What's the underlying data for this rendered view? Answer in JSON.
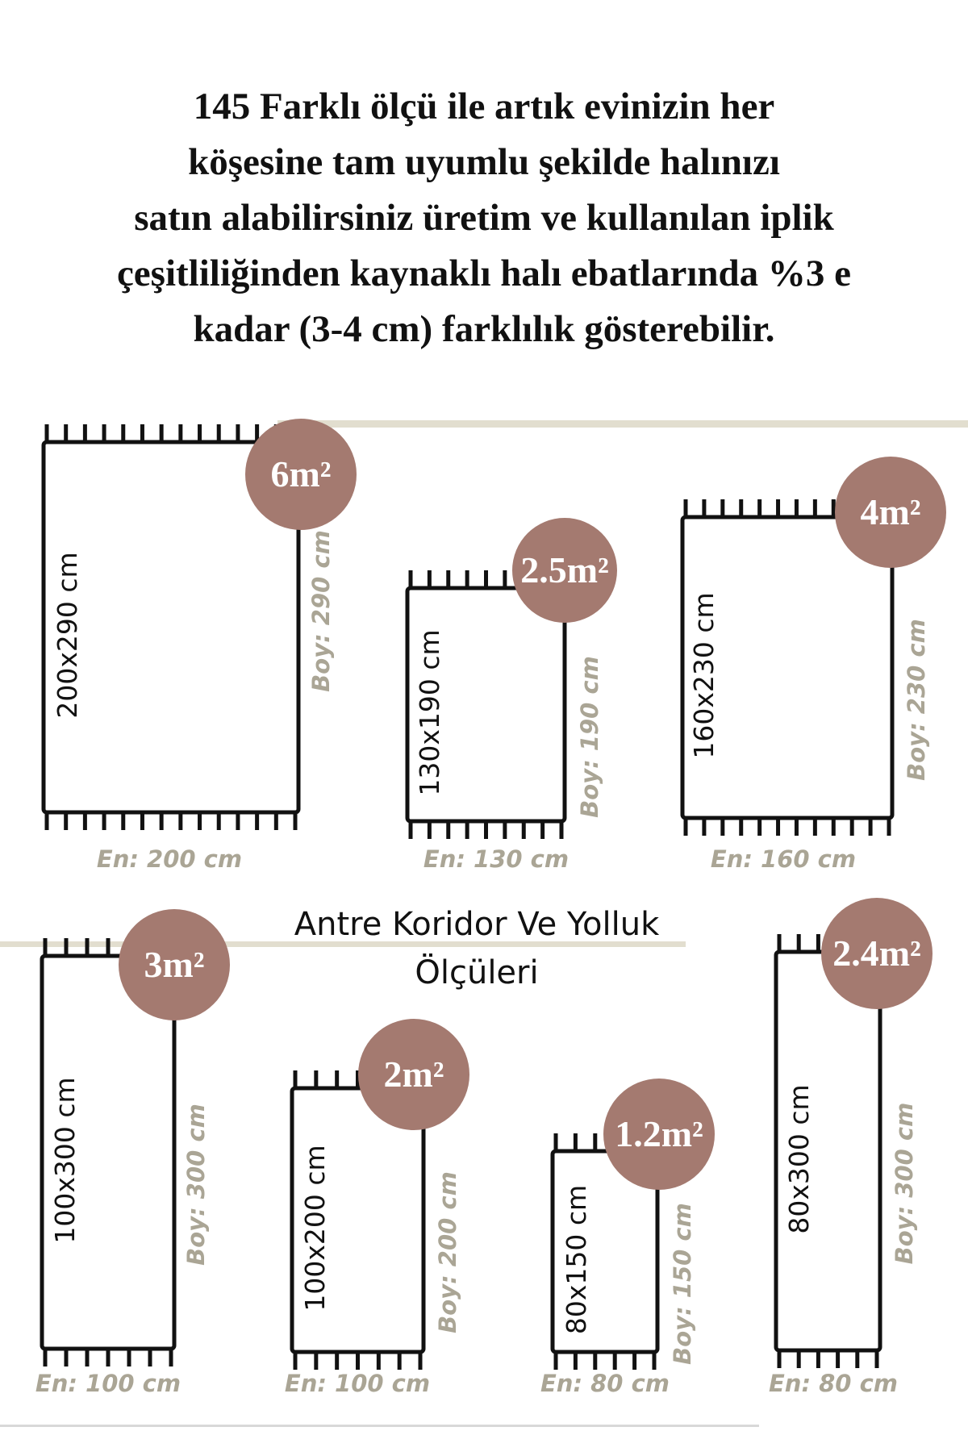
{
  "intro": {
    "lines": [
      "145 Farklı ölçü ile artık evinizin her",
      "köşesine tam uyumlu şekilde halınızı",
      "satın alabilirsiniz üretim ve kullanılan iplik",
      "çeşitliliğinden kaynaklı halı ebatlarında %3 e",
      "kadar (3-4 cm) farklılık gösterebilir."
    ]
  },
  "section_heading": {
    "line1": "Antre Koridor Ve Yolluk",
    "line2": "Ölçüleri"
  },
  "colors": {
    "badge": "#a47a70",
    "dimension_label": "#aaa595",
    "accent_line": "#e2decf",
    "rug_outline": "#111111"
  },
  "rugs": [
    {
      "size": "200x290 cm",
      "area": "6m²",
      "width_label": "En: 200 cm",
      "length_label": "Boy: 290 cm"
    },
    {
      "size": "130x190 cm",
      "area": "2.5m²",
      "width_label": "En: 130 cm",
      "length_label": "Boy: 190 cm"
    },
    {
      "size": "160x230 cm",
      "area": "4m²",
      "width_label": "En: 160 cm",
      "length_label": "Boy: 230 cm"
    },
    {
      "size": "100x300 cm",
      "area": "3m²",
      "width_label": "En: 100 cm",
      "length_label": "Boy: 300 cm"
    },
    {
      "size": "100x200 cm",
      "area": "2m²",
      "width_label": "En: 100 cm",
      "length_label": "Boy: 200 cm"
    },
    {
      "size": "80x150 cm",
      "area": "1.2m²",
      "width_label": "En: 80 cm",
      "length_label": "Boy: 150 cm"
    },
    {
      "size": "80x300 cm",
      "area": "2.4m²",
      "width_label": "En: 80 cm",
      "length_label": "Boy: 300 cm"
    }
  ]
}
